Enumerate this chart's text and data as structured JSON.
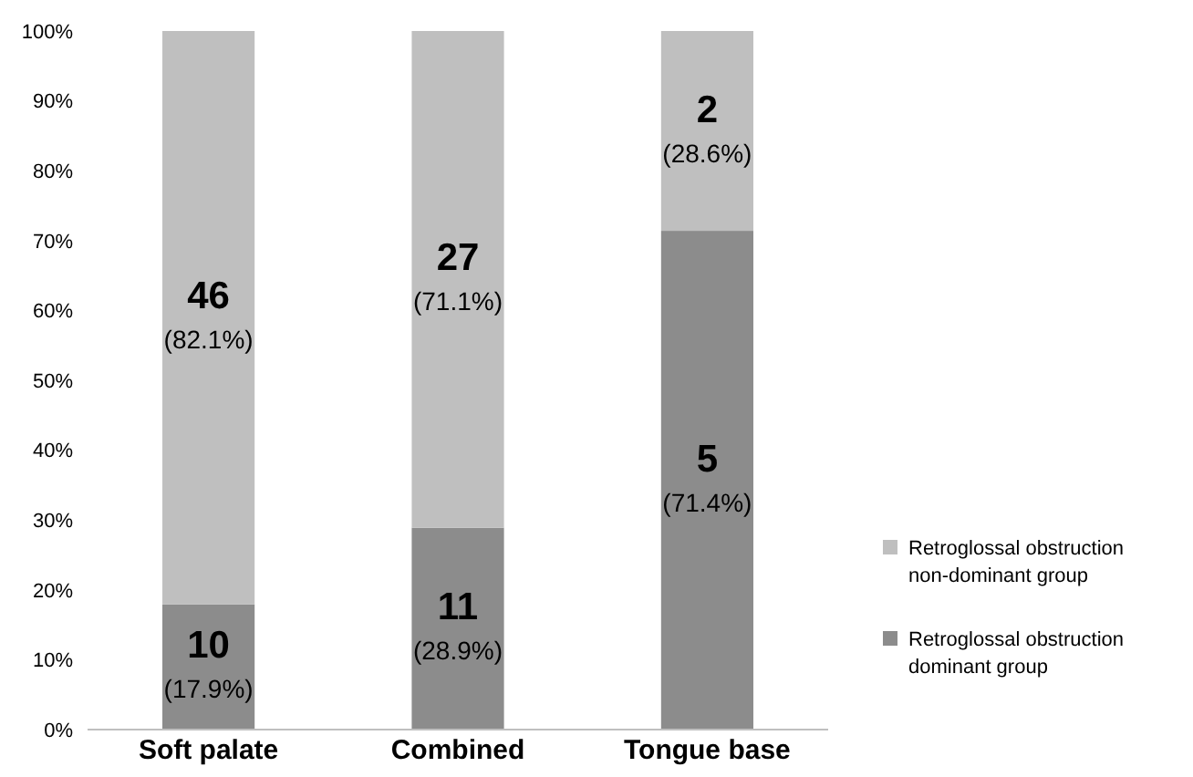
{
  "chart_data": {
    "type": "bar",
    "stacked": true,
    "categories": [
      "Soft palate",
      "Combined",
      "Tongue base"
    ],
    "ylim": [
      0,
      100
    ],
    "yticks": [
      {
        "value": 0,
        "label": "0%"
      },
      {
        "value": 10,
        "label": "10%"
      },
      {
        "value": 20,
        "label": "20%"
      },
      {
        "value": 30,
        "label": "30%"
      },
      {
        "value": 40,
        "label": "40%"
      },
      {
        "value": 50,
        "label": "50%"
      },
      {
        "value": 60,
        "label": "60%"
      },
      {
        "value": 70,
        "label": "70%"
      },
      {
        "value": 80,
        "label": "80%"
      },
      {
        "value": 90,
        "label": "90%"
      },
      {
        "value": 100,
        "label": "100%"
      }
    ],
    "legend": "bottom right",
    "grid": false,
    "series": [
      {
        "name": "Retroglossal obstruction dominant group",
        "color": "#8c8c8c",
        "values": [
          17.9,
          28.9,
          71.4
        ],
        "value_labels": [
          "10\n(17.9%)",
          "11\n(28.9%)",
          "5\n(71.4%)"
        ]
      },
      {
        "name": "Retroglossal obstruction non-dominant group",
        "color": "#bfbfbf",
        "values": [
          82.1,
          71.1,
          28.6
        ],
        "value_labels": [
          "46\n(82.1%)",
          "27\n(71.1%)",
          "2\n(28.6%)"
        ]
      }
    ]
  }
}
